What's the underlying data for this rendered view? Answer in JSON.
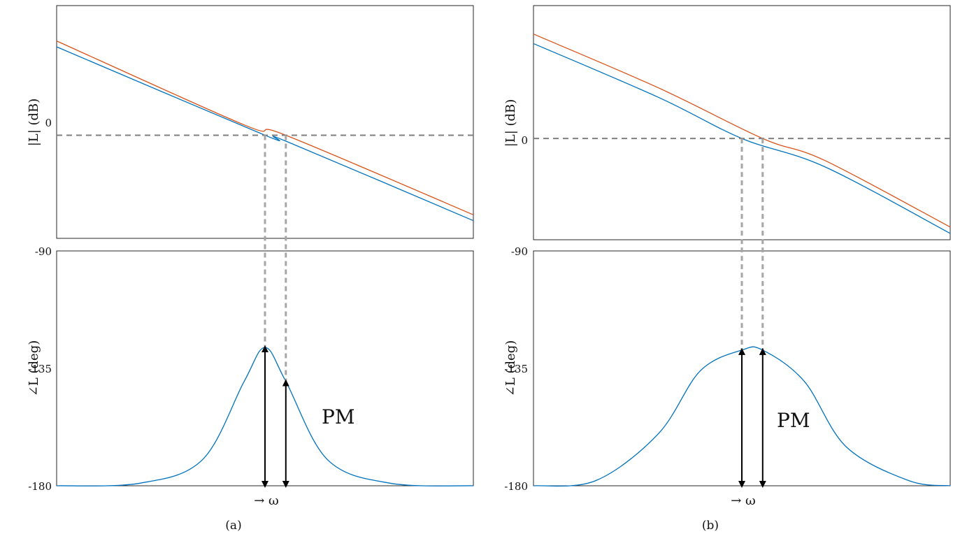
{
  "colors": {
    "series_1": "#0072BD",
    "series_2": "#D95319",
    "reference_line": "#7f7f7f",
    "crossover_guide": "#a6a6a6",
    "arrow": "#000000",
    "axes": "#262626"
  },
  "chart_data": [
    {
      "panel": "(a)",
      "panel_label": "(a)",
      "x_label": "→ ω",
      "magnitude": {
        "type": "line",
        "ylabel": "|L| (dB)",
        "y_ticks": [
          0
        ],
        "ylim": [
          -3.5,
          4.4
        ],
        "xlim": [
          0,
          1
        ],
        "reference_line_y": 0,
        "series": [
          {
            "color_key": "series_1",
            "x": [
              0,
              0.5,
              0.55,
              1
            ],
            "y": [
              3,
              0,
              -0.2,
              -2.9
            ]
          },
          {
            "color_key": "series_2",
            "x": [
              0,
              0.45,
              0.55,
              1
            ],
            "y": [
              3.2,
              0.35,
              0,
              -2.7
            ]
          }
        ],
        "crossover_x": [
          0.5,
          0.55
        ]
      },
      "phase": {
        "type": "line",
        "ylabel": "∠L (deg)",
        "y_ticks": [
          -90,
          -135,
          -180
        ],
        "ylim": [
          -180,
          -90
        ],
        "xlim": [
          0,
          1
        ],
        "series": [
          {
            "color_key": "series_1",
            "x": [
              0,
              0.2,
              0.35,
              0.45,
              0.5,
              0.55,
              0.65,
              0.8,
              1
            ],
            "y": [
              -180,
              -179,
              -170,
              -140,
              -127,
              -140,
              -170,
              -179,
              -180
            ]
          }
        ],
        "arrows_x": [
          0.5,
          0.55
        ],
        "annotation": "PM"
      }
    },
    {
      "panel": "(b)",
      "panel_label": "(b)",
      "x_label": "→ ω",
      "magnitude": {
        "type": "line",
        "ylabel": "|L| (dB)",
        "y_ticks": [
          0
        ],
        "ylim": [
          -3.2,
          4.2
        ],
        "xlim": [
          0,
          1
        ],
        "reference_line_y": 0,
        "series": [
          {
            "color_key": "series_1",
            "x": [
              0,
              0.3,
              0.5,
              0.7,
              1
            ],
            "y": [
              3,
              1.3,
              0,
              -0.9,
              -3
            ]
          },
          {
            "color_key": "series_2",
            "x": [
              0,
              0.3,
              0.55,
              0.7,
              1
            ],
            "y": [
              3.3,
              1.6,
              0,
              -0.7,
              -2.8
            ]
          }
        ],
        "crossover_x": [
          0.5,
          0.55
        ]
      },
      "phase": {
        "type": "line",
        "ylabel": "∠L (deg)",
        "y_ticks": [
          -90,
          -135,
          -180
        ],
        "ylim": [
          -180,
          -90
        ],
        "xlim": [
          0,
          1
        ],
        "series": [
          {
            "color_key": "series_1",
            "x": [
              0,
              0.15,
              0.3,
              0.4,
              0.5,
              0.55,
              0.65,
              0.75,
              0.9,
              1
            ],
            "y": [
              -180,
              -178,
              -160,
              -136,
              -128,
              -128,
              -140,
              -165,
              -178,
              -180
            ]
          }
        ],
        "arrows_x": [
          0.5,
          0.55
        ],
        "annotation": "PM"
      }
    }
  ]
}
